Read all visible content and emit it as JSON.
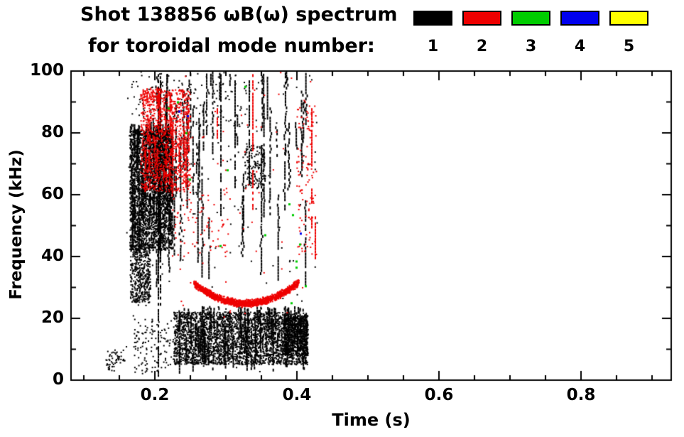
{
  "title": {
    "line1": "Shot 138856 ωB(ω) spectrum",
    "line2": "for toroidal mode number:"
  },
  "legend": {
    "items": [
      {
        "label": "1",
        "color": "#000000"
      },
      {
        "label": "2",
        "color": "#ee0000"
      },
      {
        "label": "3",
        "color": "#00cc00"
      },
      {
        "label": "4",
        "color": "#0000ee"
      },
      {
        "label": "5",
        "color": "#ffff00"
      }
    ]
  },
  "chart_data": {
    "type": "scatter",
    "title": "Shot 138856 ωB(ω) spectrum for toroidal mode number: 1 2 3 4 5",
    "xlabel": "Time (s)",
    "ylabel": "Frequency (kHz)",
    "xlim": [
      0.082,
      0.927
    ],
    "ylim": [
      0,
      100
    ],
    "x_major_ticks": [
      0.2,
      0.4,
      0.6,
      0.8
    ],
    "x_tick_labels": [
      "0.2",
      "0.4",
      "0.6",
      "0.8"
    ],
    "y_major_ticks": [
      0,
      20,
      40,
      60,
      80,
      100
    ],
    "y_tick_labels": [
      "0",
      "20",
      "40",
      "60",
      "80",
      "100"
    ],
    "x_minor_step": 0.05,
    "y_minor_step": 10,
    "grid": false,
    "legend_position": "top-right",
    "modes": {
      "1": "#000000",
      "2": "#ee0000",
      "3": "#00cc00",
      "4": "#0000ee",
      "5": "#ffff00"
    },
    "clusters": [
      {
        "type": "scatter",
        "mode": "1",
        "seed": 11,
        "t": [
          0.165,
          0.224
        ],
        "f": [
          42,
          81
        ],
        "n": 2600,
        "size": 2
      },
      {
        "type": "streaks",
        "mode": "1",
        "seed": 12,
        "t": [
          0.164,
          0.225
        ],
        "f": [
          38,
          83
        ],
        "m": 60,
        "len": [
          5,
          28
        ]
      },
      {
        "type": "scatter",
        "mode": "1",
        "seed": 13,
        "t": [
          0.166,
          0.194
        ],
        "f": [
          25,
          44
        ],
        "n": 450,
        "size": 2
      },
      {
        "type": "scatter",
        "mode": "1",
        "seed": 14,
        "t": [
          0.227,
          0.415
        ],
        "f": [
          5,
          22
        ],
        "n": 3000,
        "size": 2
      },
      {
        "type": "streaks",
        "mode": "1",
        "seed": 15,
        "t": [
          0.228,
          0.415
        ],
        "f": [
          3,
          24
        ],
        "m": 90,
        "len": [
          4,
          14
        ]
      },
      {
        "type": "scatter",
        "mode": "1",
        "seed": 16,
        "t": [
          0.382,
          0.416
        ],
        "f": [
          8,
          21
        ],
        "n": 600,
        "size": 2
      },
      {
        "type": "scatter",
        "mode": "1",
        "seed": 17,
        "t": [
          0.13,
          0.158
        ],
        "f": [
          3,
          10
        ],
        "n": 55,
        "size": 2
      },
      {
        "type": "scatter",
        "mode": "1",
        "seed": 27,
        "t": [
          0.17,
          0.227
        ],
        "f": [
          2,
          20
        ],
        "n": 120,
        "size": 2
      },
      {
        "type": "streaks",
        "mode": "1",
        "seed": 18,
        "t": [
          0.19,
          0.42
        ],
        "f": [
          30,
          100
        ],
        "m": 50,
        "len": [
          8,
          42
        ]
      },
      {
        "type": "scatter",
        "mode": "1",
        "seed": 19,
        "t": [
          0.167,
          0.33
        ],
        "f": [
          82,
          100
        ],
        "n": 130,
        "size": 2
      },
      {
        "type": "scatter",
        "mode": "1",
        "seed": 20,
        "t": [
          0.327,
          0.356
        ],
        "f": [
          62,
          76
        ],
        "n": 150,
        "size": 2
      },
      {
        "type": "scatter",
        "mode": "1",
        "seed": 21,
        "t": [
          0.16,
          0.43
        ],
        "f": [
          2,
          100
        ],
        "n": 200,
        "size": 2
      },
      {
        "type": "vline",
        "mode": "1",
        "seed": 22,
        "t": 0.204,
        "segs": [
          [
            2,
            99
          ]
        ]
      },
      {
        "type": "vline",
        "mode": "1",
        "seed": 23,
        "t": 0.207,
        "segs": [
          [
            25,
            97
          ]
        ]
      },
      {
        "type": "vline",
        "mode": "1",
        "seed": 24,
        "t": 0.292,
        "segs": [
          [
            54,
            99
          ]
        ]
      },
      {
        "type": "vline",
        "mode": "1",
        "seed": 25,
        "t": 0.312,
        "segs": [
          [
            63,
            98
          ]
        ]
      },
      {
        "type": "vline",
        "mode": "1",
        "seed": 26,
        "t": 0.332,
        "segs": [
          [
            64,
            97
          ]
        ]
      },
      {
        "type": "scatter",
        "mode": "2",
        "seed": 31,
        "t": [
          0.18,
          0.25
        ],
        "f": [
          61,
          94
        ],
        "n": 1000,
        "size": 2
      },
      {
        "type": "streaks",
        "mode": "2",
        "seed": 32,
        "t": [
          0.181,
          0.248
        ],
        "f": [
          60,
          95
        ],
        "m": 28,
        "len": [
          4,
          16
        ]
      },
      {
        "type": "curve",
        "mode": "2",
        "seed": 33,
        "t": [
          0.255,
          0.403
        ],
        "tmin": 0.328,
        "fmin": 24.8,
        "fedge": 31.6,
        "thick": 1.4,
        "n": 1500
      },
      {
        "type": "scatter",
        "mode": "2",
        "seed": 34,
        "t": [
          0.225,
          0.305
        ],
        "f": [
          40,
          62
        ],
        "n": 80,
        "size": 2
      },
      {
        "type": "scatter",
        "mode": "2",
        "seed": 35,
        "t": [
          0.4,
          0.428
        ],
        "f": [
          40,
          90
        ],
        "n": 110,
        "size": 2
      },
      {
        "type": "scatter",
        "mode": "2",
        "seed": 36,
        "t": [
          0.18,
          0.42
        ],
        "f": [
          20,
          100
        ],
        "n": 70,
        "size": 2
      },
      {
        "type": "vline",
        "mode": "2",
        "seed": 37,
        "t": 0.337,
        "segs": [
          [
            75,
            99
          ],
          [
            56,
            68
          ]
        ]
      },
      {
        "type": "vline",
        "mode": "2",
        "seed": 38,
        "t": 0.287,
        "segs": [
          [
            79,
            88
          ]
        ]
      },
      {
        "type": "vline",
        "mode": "2",
        "seed": 39,
        "t": 0.42,
        "segs": [
          [
            70,
            88
          ],
          [
            48,
            62
          ]
        ]
      },
      {
        "type": "vline",
        "mode": "2",
        "seed": 40,
        "t": 0.425,
        "segs": [
          [
            40,
            53
          ]
        ]
      },
      {
        "type": "dots",
        "mode": "3",
        "size": 3,
        "pts": [
          [
            0.219,
            88
          ],
          [
            0.232,
            90
          ],
          [
            0.244,
            80
          ],
          [
            0.249,
            65
          ],
          [
            0.327,
            95
          ],
          [
            0.292,
            43.5
          ],
          [
            0.302,
            68
          ],
          [
            0.355,
            47
          ],
          [
            0.389,
            57
          ],
          [
            0.394,
            53.5
          ],
          [
            0.399,
            38.5
          ],
          [
            0.399,
            36.5
          ],
          [
            0.404,
            44
          ],
          [
            0.412,
            30.5
          ],
          [
            0.392,
            25
          ]
        ]
      },
      {
        "type": "dots",
        "mode": "4",
        "size": 3,
        "pts": [
          [
            0.234,
            87
          ],
          [
            0.246,
            85.5
          ],
          [
            0.405,
            47.5
          ]
        ]
      }
    ]
  }
}
